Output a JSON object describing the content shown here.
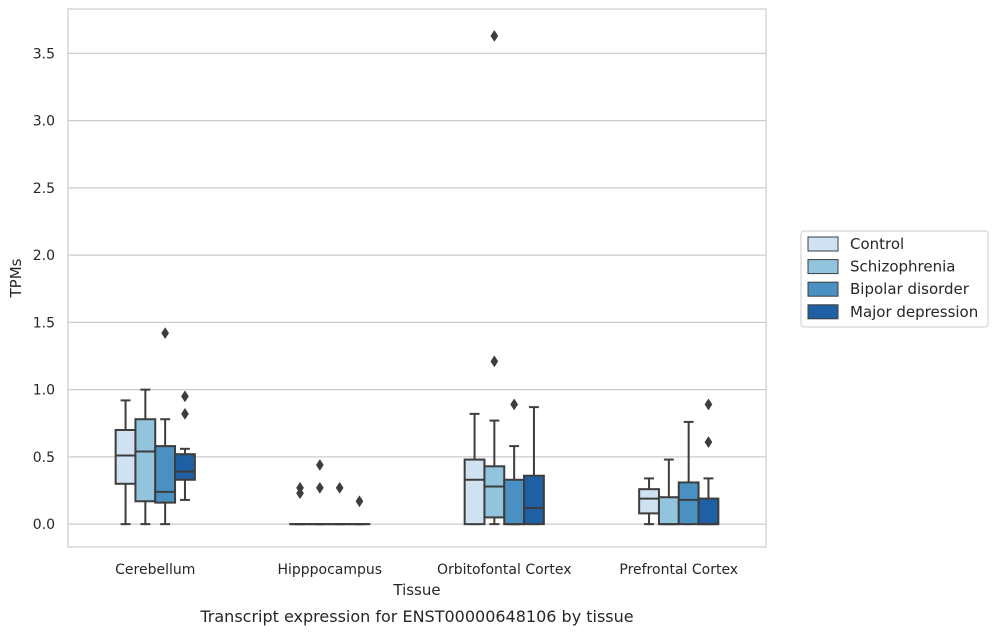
{
  "chart_data": {
    "type": "box",
    "title": "",
    "caption": "Transcript expression for ENST00000648106 by tissue",
    "xlabel": "Tissue",
    "ylabel": "TPMs",
    "ylim": [
      -0.17,
      3.83
    ],
    "yticks": [
      "0.0",
      "0.5",
      "1.0",
      "1.5",
      "2.0",
      "2.5",
      "3.0",
      "3.5"
    ],
    "ytick_values": [
      0,
      0.5,
      1.0,
      1.5,
      2.0,
      2.5,
      3.0,
      3.5
    ],
    "grid": true,
    "legend_position": "right",
    "categories": [
      "Cerebellum",
      "Hipppocampus",
      "Orbitofontal Cortex",
      "Prefrontal Cortex"
    ],
    "series": [
      {
        "name": "Control",
        "color": "#d0e1f1",
        "boxes": [
          {
            "min": 0.0,
            "q1": 0.3,
            "median": 0.51,
            "q3": 0.7,
            "max": 0.92,
            "outliers": []
          },
          {
            "min": 0.0,
            "q1": 0.0,
            "median": 0.0,
            "q3": 0.0,
            "max": 0.0,
            "outliers": [
              0.23,
              0.27
            ]
          },
          {
            "min": 0.0,
            "q1": 0.0,
            "median": 0.33,
            "q3": 0.48,
            "max": 0.82,
            "outliers": []
          },
          {
            "min": 0.0,
            "q1": 0.08,
            "median": 0.19,
            "q3": 0.26,
            "max": 0.34,
            "outliers": []
          }
        ]
      },
      {
        "name": "Schizophrenia",
        "color": "#93c4de",
        "boxes": [
          {
            "min": 0.0,
            "q1": 0.17,
            "median": 0.54,
            "q3": 0.78,
            "max": 1.0,
            "outliers": []
          },
          {
            "min": 0.0,
            "q1": 0.0,
            "median": 0.0,
            "q3": 0.0,
            "max": 0.0,
            "outliers": [
              0.27,
              0.44
            ]
          },
          {
            "min": 0.0,
            "q1": 0.05,
            "median": 0.28,
            "q3": 0.43,
            "max": 0.77,
            "outliers": [
              1.21,
              3.63
            ]
          },
          {
            "min": 0.0,
            "q1": 0.0,
            "median": 0.0,
            "q3": 0.2,
            "max": 0.48,
            "outliers": []
          }
        ]
      },
      {
        "name": "Bipolar disorder",
        "color": "#4a90c2",
        "boxes": [
          {
            "min": 0.0,
            "q1": 0.16,
            "median": 0.24,
            "q3": 0.58,
            "max": 0.78,
            "outliers": [
              1.42
            ]
          },
          {
            "min": 0.0,
            "q1": 0.0,
            "median": 0.0,
            "q3": 0.0,
            "max": 0.0,
            "outliers": [
              0.27
            ]
          },
          {
            "min": 0.0,
            "q1": 0.0,
            "median": 0.0,
            "q3": 0.33,
            "max": 0.58,
            "outliers": [
              0.89
            ]
          },
          {
            "min": 0.0,
            "q1": 0.0,
            "median": 0.18,
            "q3": 0.31,
            "max": 0.76,
            "outliers": []
          }
        ]
      },
      {
        "name": "Major depression",
        "color": "#1f5fa4",
        "boxes": [
          {
            "min": 0.18,
            "q1": 0.33,
            "median": 0.39,
            "q3": 0.52,
            "max": 0.56,
            "outliers": [
              0.82,
              0.95
            ]
          },
          {
            "min": 0.0,
            "q1": 0.0,
            "median": 0.0,
            "q3": 0.0,
            "max": 0.0,
            "outliers": [
              0.17
            ]
          },
          {
            "min": 0.0,
            "q1": 0.0,
            "median": 0.12,
            "q3": 0.36,
            "max": 0.87,
            "outliers": []
          },
          {
            "min": 0.0,
            "q1": 0.0,
            "median": 0.0,
            "q3": 0.19,
            "max": 0.34,
            "outliers": [
              0.61,
              0.89
            ]
          }
        ]
      }
    ]
  }
}
